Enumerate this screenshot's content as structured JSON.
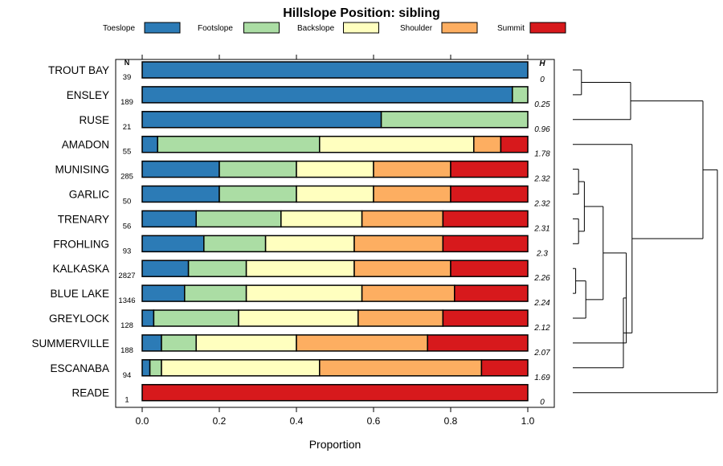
{
  "chart_data": {
    "type": "bar",
    "stacked": true,
    "title": "Hillslope Position: sibling",
    "xlabel": "Proportion",
    "xlim": [
      0,
      1
    ],
    "xticks": [
      0.0,
      0.2,
      0.4,
      0.6,
      0.8,
      1.0
    ],
    "xtick_labels": [
      "0.0",
      "0.2",
      "0.4",
      "0.6",
      "0.8",
      "1.0"
    ],
    "n_header": "N",
    "h_header": "H",
    "legend": [
      {
        "name": "Toeslope",
        "color": "#2c7bb6"
      },
      {
        "name": "Footslope",
        "color": "#abdda4"
      },
      {
        "name": "Backslope",
        "color": "#ffffbf"
      },
      {
        "name": "Shoulder",
        "color": "#fdae61"
      },
      {
        "name": "Summit",
        "color": "#d7191c"
      }
    ],
    "categories": [
      "TROUT BAY",
      "ENSLEY",
      "RUSE",
      "AMADON",
      "MUNISING",
      "GARLIC",
      "TRENARY",
      "FROHLING",
      "KALKASKA",
      "BLUE LAKE",
      "GREYLOCK",
      "SUMMERVILLE",
      "ESCANABA",
      "READE"
    ],
    "n": [
      "39",
      "189",
      "21",
      "55",
      "285",
      "50",
      "56",
      "93",
      "2827",
      "1346",
      "128",
      "188",
      "94",
      "1"
    ],
    "h": [
      "0",
      "0.25",
      "0.96",
      "1.78",
      "2.32",
      "2.32",
      "2.31",
      "2.3",
      "2.26",
      "2.24",
      "2.12",
      "2.07",
      "1.69",
      "0"
    ],
    "series": [
      {
        "name": "Toeslope",
        "values": [
          1.0,
          0.96,
          0.62,
          0.04,
          0.2,
          0.2,
          0.14,
          0.16,
          0.12,
          0.11,
          0.03,
          0.05,
          0.02,
          0.0
        ]
      },
      {
        "name": "Footslope",
        "values": [
          0.0,
          0.04,
          0.38,
          0.42,
          0.2,
          0.2,
          0.22,
          0.16,
          0.15,
          0.16,
          0.22,
          0.09,
          0.03,
          0.0
        ]
      },
      {
        "name": "Backslope",
        "values": [
          0.0,
          0.0,
          0.0,
          0.4,
          0.2,
          0.2,
          0.21,
          0.23,
          0.28,
          0.3,
          0.31,
          0.26,
          0.41,
          0.0
        ]
      },
      {
        "name": "Shoulder",
        "values": [
          0.0,
          0.0,
          0.0,
          0.07,
          0.2,
          0.2,
          0.21,
          0.23,
          0.25,
          0.24,
          0.22,
          0.34,
          0.42,
          0.0
        ]
      },
      {
        "name": "Summit",
        "values": [
          0.0,
          0.0,
          0.0,
          0.07,
          0.2,
          0.2,
          0.22,
          0.22,
          0.2,
          0.19,
          0.22,
          0.26,
          0.12,
          1.0
        ]
      }
    ],
    "dendrogram": {
      "orientation": "right",
      "leaf_order": [
        "TROUT BAY",
        "ENSLEY",
        "RUSE",
        "AMADON",
        "MUNISING",
        "GARLIC",
        "TRENARY",
        "FROHLING",
        "KALKASKA",
        "BLUE LAKE",
        "GREYLOCK",
        "SUMMERVILLE",
        "ESCANABA",
        "READE"
      ],
      "merges": [
        {
          "id": "c1",
          "a": "TROUT BAY",
          "b": "ENSLEY",
          "height": 0.06
        },
        {
          "id": "c2",
          "a": "c1",
          "b": "RUSE",
          "height": 0.4
        },
        {
          "id": "c3",
          "a": "MUNISING",
          "b": "GARLIC",
          "height": 0.04
        },
        {
          "id": "c4",
          "a": "TRENARY",
          "b": "FROHLING",
          "height": 0.04
        },
        {
          "id": "c5",
          "a": "c3",
          "b": "c4",
          "height": 0.08
        },
        {
          "id": "c6",
          "a": "KALKASKA",
          "b": "BLUE LAKE",
          "height": 0.02
        },
        {
          "id": "c7",
          "a": "c6",
          "b": "GREYLOCK",
          "height": 0.09
        },
        {
          "id": "c8",
          "a": "c5",
          "b": "c7",
          "height": 0.21
        },
        {
          "id": "c9",
          "a": "c8",
          "b": "SUMMERVILLE",
          "height": 0.37
        },
        {
          "id": "c10",
          "a": "c9",
          "b": "ESCANABA",
          "height": 0.35
        },
        {
          "id": "c11",
          "a": "AMADON",
          "b": "c10",
          "height": 0.41
        },
        {
          "id": "c12",
          "a": "c2",
          "b": "c11",
          "height": 0.9
        },
        {
          "id": "c13",
          "a": "c12",
          "b": "READE",
          "height": 1.0
        }
      ]
    }
  }
}
